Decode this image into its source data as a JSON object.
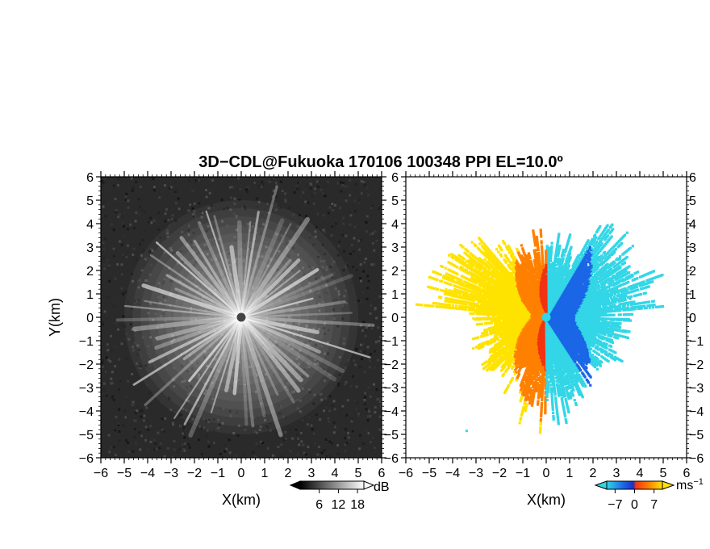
{
  "chart_data": {
    "title": "3D−CDL@Fukuoka 170106 100348 PPI EL=10.0º",
    "panels": [
      {
        "type": "heatmap",
        "field": "reflectivity (grayscale PPI)",
        "xlabel": "X(km)",
        "ylabel": "Y(km)",
        "xlim": [
          -6,
          6
        ],
        "ylim": [
          -6,
          6
        ],
        "xticks": [
          "−6",
          "−5",
          "−4",
          "−3",
          "−2",
          "−1",
          "0",
          "1",
          "2",
          "3",
          "4",
          "5",
          "6"
        ],
        "yticks": [
          "−6",
          "−5",
          "−4",
          "−3",
          "−2",
          "−1",
          "0",
          "1",
          "2",
          "3",
          "4",
          "5",
          "6"
        ],
        "colorbar": {
          "unit": "dB",
          "ticks": [
            "6",
            "12",
            "18"
          ],
          "tick_values": [
            6,
            12,
            18
          ],
          "range": [
            0,
            20
          ],
          "colormap": "grayscale"
        }
      },
      {
        "type": "heatmap",
        "field": "Doppler velocity (PPI)",
        "xlabel": "X(km)",
        "ylabel": "",
        "xlim": [
          -6,
          6
        ],
        "ylim": [
          -6,
          6
        ],
        "xticks": [
          "−6",
          "−5",
          "−4",
          "−3",
          "−2",
          "−1",
          "0",
          "1",
          "2",
          "3",
          "4",
          "5",
          "6"
        ],
        "yticks": [
          "−6",
          "−5",
          "−4",
          "−3",
          "−2",
          "−1",
          "0",
          "1",
          "2",
          "3",
          "4",
          "5",
          "6"
        ],
        "colorbar": {
          "unit": "ms",
          "unit_sup": "−1",
          "ticks": [
            "−7",
            "0",
            "7"
          ],
          "tick_values": [
            -7,
            0,
            7
          ],
          "range": [
            -10,
            10
          ],
          "colormap": "cyan-blue-red-yellow"
        }
      }
    ],
    "grid": false
  },
  "colors": {
    "cyan": "#33d6e6",
    "blue": "#1a66e6",
    "navy": "#1f2fc4",
    "red": "#f23312",
    "orange": "#ff8000",
    "yellow": "#ffe300",
    "bg_dark": "#2a2a2a"
  }
}
